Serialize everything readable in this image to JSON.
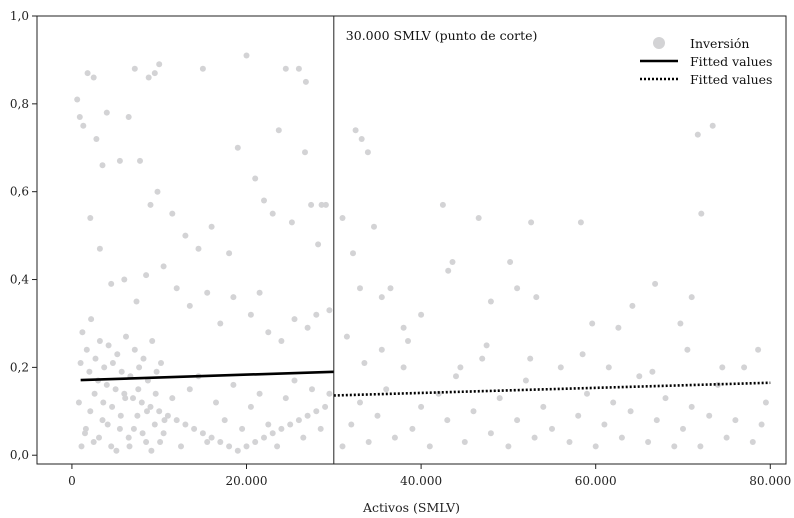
{
  "chart_data": {
    "type": "scatter",
    "x_label": "Activos (SMLV)",
    "x_range": [
      -4000,
      81800
    ],
    "y_range": [
      -0.02,
      1.0
    ],
    "x_ticks": [
      0,
      20000,
      40000,
      60000,
      80000
    ],
    "x_tick_labels": [
      "0",
      "20.000",
      "40.000",
      "60.000",
      "80.000"
    ],
    "y_ticks": [
      0.0,
      0.2,
      0.4,
      0.6,
      0.8,
      1.0
    ],
    "y_tick_labels": [
      "0,0",
      "0,2",
      "0,4",
      "0,6",
      "0,8",
      "1,0"
    ],
    "cutoff": {
      "x": 30000,
      "label": "30.000 SMLV (punto de corte)"
    },
    "legend": {
      "placement": "top-right",
      "entries": [
        {
          "label": "Inversión",
          "kind": "marker"
        },
        {
          "label": "Fitted values",
          "kind": "solid-line"
        },
        {
          "label": "Fitted values",
          "kind": "dotted-line"
        }
      ]
    },
    "colors": {
      "points": "#d3d3d5",
      "line": "#000000",
      "axis": "#222222"
    },
    "grid": false,
    "series": [
      {
        "name": "Inversión",
        "kind": "scatter",
        "points": [
          [
            1800,
            0.87
          ],
          [
            2500,
            0.86
          ],
          [
            600,
            0.81
          ],
          [
            900,
            0.77
          ],
          [
            1300,
            0.75
          ],
          [
            2800,
            0.72
          ],
          [
            4000,
            0.78
          ],
          [
            6500,
            0.77
          ],
          [
            7200,
            0.88
          ],
          [
            8800,
            0.86
          ],
          [
            9500,
            0.87
          ],
          [
            10000,
            0.89
          ],
          [
            15000,
            0.88
          ],
          [
            20000,
            0.91
          ],
          [
            24500,
            0.88
          ],
          [
            26000,
            0.88
          ],
          [
            26800,
            0.85
          ],
          [
            3500,
            0.66
          ],
          [
            5500,
            0.67
          ],
          [
            7800,
            0.67
          ],
          [
            9000,
            0.57
          ],
          [
            9800,
            0.6
          ],
          [
            11500,
            0.55
          ],
          [
            13000,
            0.5
          ],
          [
            14500,
            0.47
          ],
          [
            16000,
            0.52
          ],
          [
            18000,
            0.46
          ],
          [
            19000,
            0.7
          ],
          [
            21000,
            0.63
          ],
          [
            22000,
            0.58
          ],
          [
            23000,
            0.55
          ],
          [
            23700,
            0.74
          ],
          [
            25200,
            0.53
          ],
          [
            26700,
            0.69
          ],
          [
            27400,
            0.57
          ],
          [
            28200,
            0.48
          ],
          [
            28600,
            0.57
          ],
          [
            29100,
            0.57
          ],
          [
            29500,
            0.33
          ],
          [
            2100,
            0.54
          ],
          [
            3200,
            0.47
          ],
          [
            4500,
            0.39
          ],
          [
            6000,
            0.4
          ],
          [
            7400,
            0.35
          ],
          [
            8500,
            0.41
          ],
          [
            10500,
            0.43
          ],
          [
            12000,
            0.38
          ],
          [
            13500,
            0.34
          ],
          [
            15500,
            0.37
          ],
          [
            17000,
            0.3
          ],
          [
            18500,
            0.36
          ],
          [
            20500,
            0.32
          ],
          [
            21500,
            0.37
          ],
          [
            22500,
            0.28
          ],
          [
            24000,
            0.26
          ],
          [
            25500,
            0.31
          ],
          [
            27000,
            0.29
          ],
          [
            28000,
            0.32
          ],
          [
            32500,
            0.74
          ],
          [
            33200,
            0.72
          ],
          [
            33900,
            0.69
          ],
          [
            31000,
            0.54
          ],
          [
            32200,
            0.46
          ],
          [
            33000,
            0.38
          ],
          [
            34600,
            0.52
          ],
          [
            35500,
            0.36
          ],
          [
            36500,
            0.38
          ],
          [
            38000,
            0.29
          ],
          [
            40000,
            0.32
          ],
          [
            42500,
            0.57
          ],
          [
            43100,
            0.42
          ],
          [
            43600,
            0.44
          ],
          [
            46600,
            0.54
          ],
          [
            48000,
            0.35
          ],
          [
            50200,
            0.44
          ],
          [
            51000,
            0.38
          ],
          [
            52600,
            0.53
          ],
          [
            53200,
            0.36
          ],
          [
            58300,
            0.53
          ],
          [
            59600,
            0.3
          ],
          [
            62600,
            0.29
          ],
          [
            64200,
            0.34
          ],
          [
            66800,
            0.39
          ],
          [
            69700,
            0.3
          ],
          [
            71000,
            0.36
          ],
          [
            71700,
            0.73
          ],
          [
            72100,
            0.55
          ],
          [
            73400,
            0.75
          ],
          [
            78600,
            0.24
          ],
          [
            1000,
            0.21
          ],
          [
            2000,
            0.19
          ],
          [
            3000,
            0.17
          ],
          [
            4000,
            0.16
          ],
          [
            5000,
            0.15
          ],
          [
            6000,
            0.14
          ],
          [
            7000,
            0.13
          ],
          [
            8000,
            0.12
          ],
          [
            9000,
            0.11
          ],
          [
            10000,
            0.1
          ],
          [
            11000,
            0.09
          ],
          [
            12000,
            0.08
          ],
          [
            13000,
            0.07
          ],
          [
            14000,
            0.06
          ],
          [
            15000,
            0.05
          ],
          [
            16000,
            0.04
          ],
          [
            17000,
            0.03
          ],
          [
            18000,
            0.02
          ],
          [
            19000,
            0.01
          ],
          [
            20000,
            0.02
          ],
          [
            21000,
            0.03
          ],
          [
            22000,
            0.04
          ],
          [
            23000,
            0.05
          ],
          [
            24000,
            0.06
          ],
          [
            25000,
            0.07
          ],
          [
            26000,
            0.08
          ],
          [
            27000,
            0.09
          ],
          [
            28000,
            0.1
          ],
          [
            29000,
            0.11
          ],
          [
            1500,
            0.05
          ],
          [
            2500,
            0.03
          ],
          [
            3500,
            0.08
          ],
          [
            4500,
            0.02
          ],
          [
            5500,
            0.06
          ],
          [
            6500,
            0.04
          ],
          [
            7500,
            0.09
          ],
          [
            8500,
            0.03
          ],
          [
            9500,
            0.07
          ],
          [
            10500,
            0.05
          ],
          [
            11500,
            0.13
          ],
          [
            12500,
            0.02
          ],
          [
            13500,
            0.15
          ],
          [
            14500,
            0.18
          ],
          [
            15500,
            0.03
          ],
          [
            16500,
            0.12
          ],
          [
            17500,
            0.08
          ],
          [
            18500,
            0.16
          ],
          [
            19500,
            0.06
          ],
          [
            20500,
            0.11
          ],
          [
            21500,
            0.14
          ],
          [
            22500,
            0.07
          ],
          [
            23500,
            0.02
          ],
          [
            24500,
            0.13
          ],
          [
            25500,
            0.17
          ],
          [
            26500,
            0.04
          ],
          [
            27500,
            0.15
          ],
          [
            28500,
            0.06
          ],
          [
            29500,
            0.14
          ],
          [
            800,
            0.12
          ],
          [
            1200,
            0.28
          ],
          [
            1700,
            0.24
          ],
          [
            2200,
            0.31
          ],
          [
            2700,
            0.22
          ],
          [
            3200,
            0.26
          ],
          [
            3700,
            0.2
          ],
          [
            4200,
            0.25
          ],
          [
            4700,
            0.21
          ],
          [
            5200,
            0.23
          ],
          [
            5700,
            0.19
          ],
          [
            6200,
            0.27
          ],
          [
            6700,
            0.18
          ],
          [
            7200,
            0.24
          ],
          [
            7700,
            0.2
          ],
          [
            8200,
            0.22
          ],
          [
            8700,
            0.17
          ],
          [
            9200,
            0.26
          ],
          [
            9700,
            0.19
          ],
          [
            10200,
            0.21
          ],
          [
            1100,
            0.02
          ],
          [
            1600,
            0.06
          ],
          [
            2100,
            0.1
          ],
          [
            2600,
            0.14
          ],
          [
            3100,
            0.04
          ],
          [
            3600,
            0.12
          ],
          [
            4100,
            0.07
          ],
          [
            4600,
            0.11
          ],
          [
            5100,
            0.01
          ],
          [
            5600,
            0.09
          ],
          [
            6100,
            0.13
          ],
          [
            6600,
            0.02
          ],
          [
            7100,
            0.06
          ],
          [
            7600,
            0.15
          ],
          [
            8100,
            0.05
          ],
          [
            8600,
            0.1
          ],
          [
            9100,
            0.01
          ],
          [
            9600,
            0.14
          ],
          [
            10100,
            0.03
          ],
          [
            10600,
            0.08
          ],
          [
            31000,
            0.02
          ],
          [
            32000,
            0.07
          ],
          [
            33000,
            0.12
          ],
          [
            34000,
            0.03
          ],
          [
            35000,
            0.09
          ],
          [
            36000,
            0.15
          ],
          [
            37000,
            0.04
          ],
          [
            38000,
            0.2
          ],
          [
            39000,
            0.06
          ],
          [
            40000,
            0.11
          ],
          [
            41000,
            0.02
          ],
          [
            42000,
            0.14
          ],
          [
            43000,
            0.08
          ],
          [
            44000,
            0.18
          ],
          [
            45000,
            0.03
          ],
          [
            46000,
            0.1
          ],
          [
            47000,
            0.22
          ],
          [
            48000,
            0.05
          ],
          [
            49000,
            0.13
          ],
          [
            50000,
            0.02
          ],
          [
            51000,
            0.08
          ],
          [
            52000,
            0.17
          ],
          [
            53000,
            0.04
          ],
          [
            54000,
            0.11
          ],
          [
            55000,
            0.06
          ],
          [
            56000,
            0.2
          ],
          [
            57000,
            0.03
          ],
          [
            58000,
            0.09
          ],
          [
            59000,
            0.14
          ],
          [
            60000,
            0.02
          ],
          [
            61000,
            0.07
          ],
          [
            62000,
            0.12
          ],
          [
            63000,
            0.04
          ],
          [
            64000,
            0.1
          ],
          [
            65000,
            0.18
          ],
          [
            66000,
            0.03
          ],
          [
            67000,
            0.08
          ],
          [
            68000,
            0.13
          ],
          [
            69000,
            0.02
          ],
          [
            70000,
            0.06
          ],
          [
            71000,
            0.11
          ],
          [
            72000,
            0.02
          ],
          [
            73000,
            0.09
          ],
          [
            74000,
            0.16
          ],
          [
            75000,
            0.04
          ],
          [
            76000,
            0.08
          ],
          [
            77000,
            0.2
          ],
          [
            78000,
            0.03
          ],
          [
            79000,
            0.07
          ],
          [
            79500,
            0.12
          ],
          [
            31500,
            0.27
          ],
          [
            33500,
            0.21
          ],
          [
            35500,
            0.24
          ],
          [
            38500,
            0.26
          ],
          [
            44500,
            0.2
          ],
          [
            47500,
            0.25
          ],
          [
            52500,
            0.22
          ],
          [
            58500,
            0.23
          ],
          [
            61500,
            0.2
          ],
          [
            66500,
            0.19
          ],
          [
            70500,
            0.24
          ],
          [
            74500,
            0.2
          ]
        ]
      },
      {
        "name": "Fitted values",
        "kind": "line",
        "style": "solid",
        "points": [
          [
            1000,
            0.171
          ],
          [
            30000,
            0.19
          ]
        ]
      },
      {
        "name": "Fitted values",
        "kind": "line",
        "style": "dotted",
        "points": [
          [
            30000,
            0.136
          ],
          [
            80000,
            0.165
          ]
        ]
      }
    ]
  }
}
